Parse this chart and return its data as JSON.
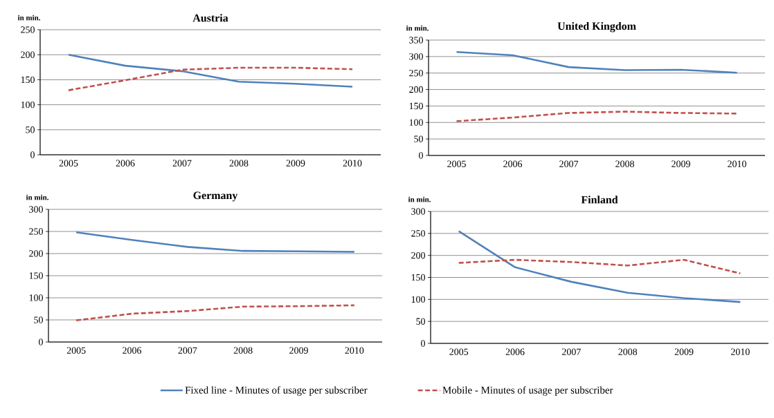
{
  "chart_data": [
    {
      "type": "line",
      "title": "Austria",
      "ylabel": "in min.",
      "categories": [
        "2005",
        "2006",
        "2007",
        "2008",
        "2009",
        "2010"
      ],
      "ylim": [
        0,
        250
      ],
      "yticks": [
        0,
        50,
        100,
        150,
        200,
        250
      ],
      "grid": "y",
      "legend": "bottom",
      "series": [
        {
          "name": "Fixed line - Minutes of usage per subscriber",
          "color": "#4f81bd",
          "line_style": "solid",
          "values": [
            200,
            178,
            167,
            146,
            142,
            136
          ]
        },
        {
          "name": "Mobile - Minutes of usage per subscriber",
          "color": "#c0504d",
          "line_style": "dashed",
          "values": [
            129,
            149,
            170,
            174,
            174,
            171
          ]
        }
      ]
    },
    {
      "type": "line",
      "title": "United Kingdom",
      "ylabel": "in min.",
      "categories": [
        "2005",
        "2006",
        "2007",
        "2008",
        "2009",
        "2010"
      ],
      "ylim": [
        0,
        350
      ],
      "yticks": [
        0,
        50,
        100,
        150,
        200,
        250,
        300,
        350
      ],
      "grid": "y",
      "series": [
        {
          "color": "#4f81bd",
          "line_style": "solid",
          "values": [
            314,
            304,
            268,
            259,
            260,
            251
          ]
        },
        {
          "color": "#c0504d",
          "line_style": "dashed",
          "values": [
            104,
            115,
            129,
            133,
            129,
            127
          ]
        }
      ]
    },
    {
      "type": "line",
      "title": "Germany",
      "ylabel": "in min.",
      "categories": [
        "2005",
        "2006",
        "2007",
        "2008",
        "2009",
        "2010"
      ],
      "ylim": [
        0,
        300
      ],
      "yticks": [
        0,
        50,
        100,
        150,
        200,
        250,
        300
      ],
      "grid": "y",
      "series": [
        {
          "color": "#4f81bd",
          "line_style": "solid",
          "values": [
            248,
            231,
            215,
            206,
            205,
            204
          ]
        },
        {
          "color": "#c0504d",
          "line_style": "dashed",
          "values": [
            49,
            64,
            70,
            80,
            81,
            83
          ]
        }
      ]
    },
    {
      "type": "line",
      "title": "Finland",
      "ylabel": "in min.",
      "categories": [
        "2005",
        "2006",
        "2007",
        "2008",
        "2009",
        "2010"
      ],
      "ylim": [
        0,
        300
      ],
      "yticks": [
        0,
        50,
        100,
        150,
        200,
        250,
        300
      ],
      "grid": "y",
      "series": [
        {
          "color": "#4f81bd",
          "line_style": "solid",
          "values": [
            255,
            173,
            140,
            115,
            103,
            94
          ]
        },
        {
          "color": "#c0504d",
          "line_style": "dashed",
          "values": [
            183,
            190,
            185,
            177,
            190,
            159
          ]
        }
      ]
    }
  ]
}
